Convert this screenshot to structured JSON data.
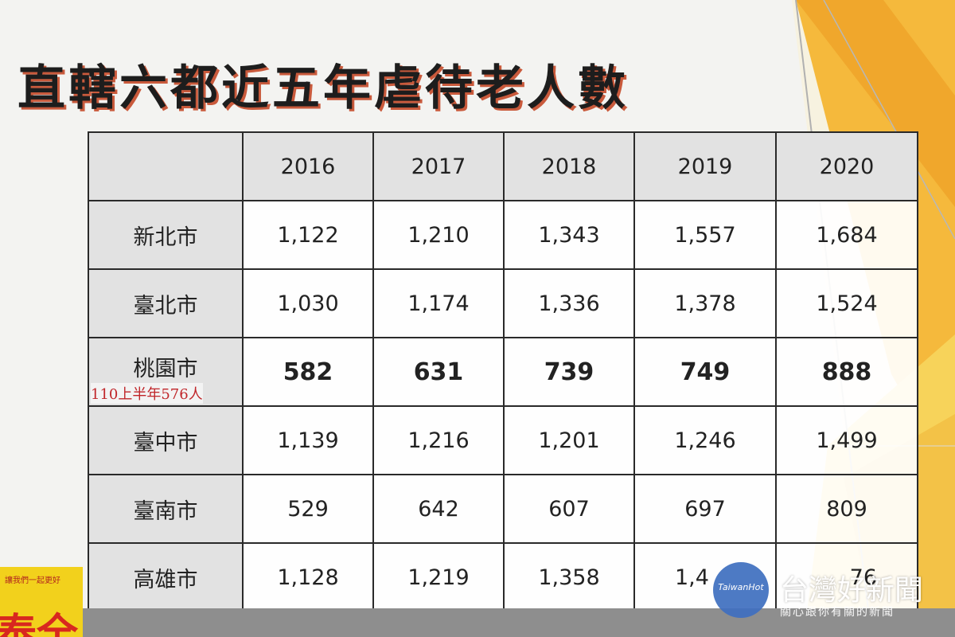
{
  "title": "直轄六都近五年虐待老人數",
  "table": {
    "years": [
      "2016",
      "2017",
      "2018",
      "2019",
      "2020"
    ],
    "rows": [
      {
        "city": "新北市",
        "values": [
          "1,122",
          "1,210",
          "1,343",
          "1,557",
          "1,684"
        ]
      },
      {
        "city": "臺北市",
        "values": [
          "1,030",
          "1,174",
          "1,336",
          "1,378",
          "1,524"
        ]
      },
      {
        "city": "桃園市",
        "note": "110上半年576人",
        "values": [
          "582",
          "631",
          "739",
          "749",
          "888"
        ]
      },
      {
        "city": "臺中市",
        "values": [
          "1,139",
          "1,216",
          "1,201",
          "1,246",
          "1,499"
        ]
      },
      {
        "city": "臺南市",
        "values": [
          "529",
          "642",
          "607",
          "697",
          "809"
        ]
      },
      {
        "city": "高雄市",
        "values": [
          "1,128",
          "1,219",
          "1,358",
          "1,4",
          "76"
        ]
      }
    ]
  },
  "badge": {
    "slogan": "讓我們一起更好",
    "big": "泰全"
  },
  "watermark": {
    "logo_text": "TaiwanHot",
    "name": "台灣好新聞",
    "sub": "關心跟你有關的新聞"
  },
  "colors": {
    "accent_orange": "#f0a52a",
    "accent_yellow": "#f7d35a",
    "title_shadow": "#c95a3c",
    "note_red": "#c0262a"
  }
}
